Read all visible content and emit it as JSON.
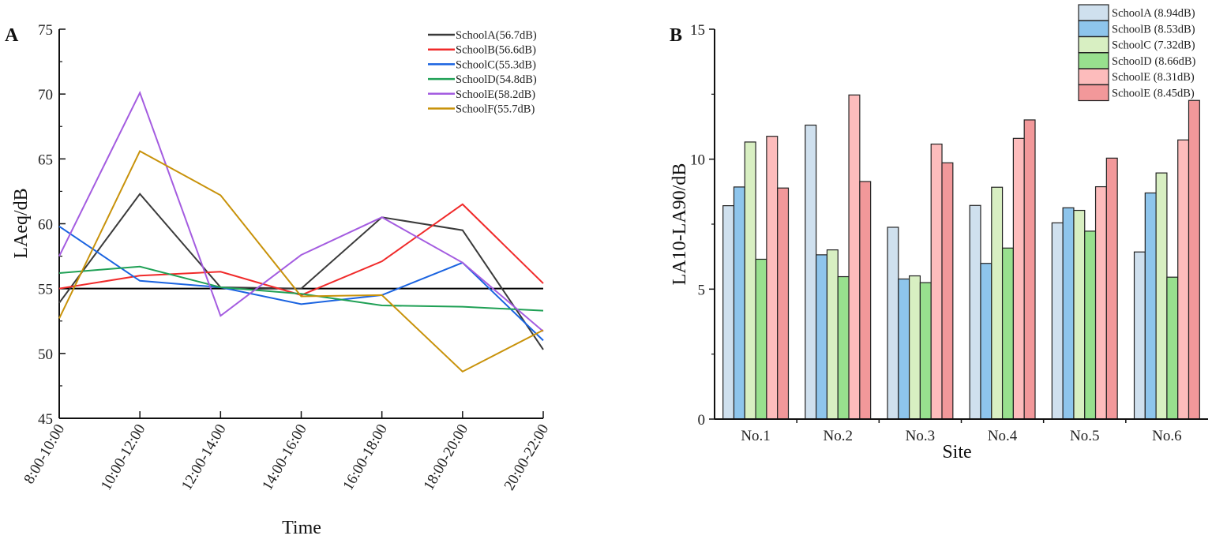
{
  "chart_data": [
    {
      "type": "line",
      "panel_label": "A",
      "xlabel": "Time",
      "ylabel": "LAeq/dB",
      "ylim": [
        45,
        75
      ],
      "yticks": [
        45,
        50,
        55,
        60,
        65,
        70,
        75
      ],
      "categories": [
        "8:00-10:00",
        "10:00-12:00",
        "12:00-14:00",
        "14:00-16:00",
        "16:00-18:00",
        "18:00-20:00",
        "20:00-22:00"
      ],
      "reference_line": 55,
      "reference_color": "#000000",
      "legend_position": "top-right",
      "grid": false,
      "series": [
        {
          "name": "SchoolA(56.7dB)",
          "color": "#3a3a3a",
          "values": [
            53.9,
            62.3,
            55.1,
            55.0,
            60.5,
            59.5,
            50.3
          ]
        },
        {
          "name": "SchoolB(56.6dB)",
          "color": "#f02a2a",
          "values": [
            55.0,
            56.0,
            56.3,
            54.5,
            57.1,
            61.5,
            55.4
          ]
        },
        {
          "name": "SchoolC(55.3dB)",
          "color": "#1a63e0",
          "values": [
            59.8,
            55.6,
            55.1,
            53.8,
            54.5,
            57.0,
            51.0
          ]
        },
        {
          "name": "SchoolD(54.8dB)",
          "color": "#1fa055",
          "values": [
            56.2,
            56.7,
            55.1,
            54.6,
            53.7,
            53.6,
            53.3
          ]
        },
        {
          "name": "SchoolE(58.2dB)",
          "color": "#a45ce0",
          "values": [
            57.5,
            70.1,
            52.9,
            57.6,
            60.5,
            57.0,
            51.7
          ]
        },
        {
          "name": "SchoolF(55.7dB)",
          "color": "#c8920a",
          "values": [
            52.7,
            65.6,
            62.2,
            54.4,
            54.5,
            48.6,
            51.8
          ]
        }
      ]
    },
    {
      "type": "bar",
      "panel_label": "B",
      "xlabel": "Site",
      "ylabel": "LA10-LA90/dB",
      "ylim": [
        0,
        15
      ],
      "yticks": [
        0,
        5,
        10,
        15
      ],
      "categories": [
        "No.1",
        "No.2",
        "No.3",
        "No.4",
        "No.5",
        "No.6"
      ],
      "legend_position": "top-right",
      "grid": false,
      "series": [
        {
          "name": "SchoolA  (8.94dB)",
          "color": "#cfe0ee",
          "values": [
            8.21,
            11.31,
            7.38,
            8.22,
            7.55,
            6.43
          ]
        },
        {
          "name": "SchoolB  (8.53dB)",
          "color": "#8ec5ec",
          "values": [
            8.93,
            6.32,
            5.39,
            5.99,
            8.13,
            8.7
          ]
        },
        {
          "name": "SchoolC  (7.32dB)",
          "color": "#d8efc2",
          "values": [
            10.66,
            6.51,
            5.51,
            8.92,
            8.03,
            9.47
          ]
        },
        {
          "name": "SchoolD  (8.66dB)",
          "color": "#98e08e",
          "values": [
            6.15,
            5.48,
            5.25,
            6.58,
            7.23,
            5.46
          ]
        },
        {
          "name": "SchoolE  (8.31dB)",
          "color": "#fdbcbc",
          "values": [
            10.88,
            12.47,
            10.58,
            10.8,
            8.94,
            10.74
          ]
        },
        {
          "name": "SchoolE  (8.45dB)",
          "color": "#f2989a",
          "values": [
            8.89,
            9.14,
            9.86,
            11.51,
            10.04,
            12.26
          ]
        }
      ]
    }
  ]
}
